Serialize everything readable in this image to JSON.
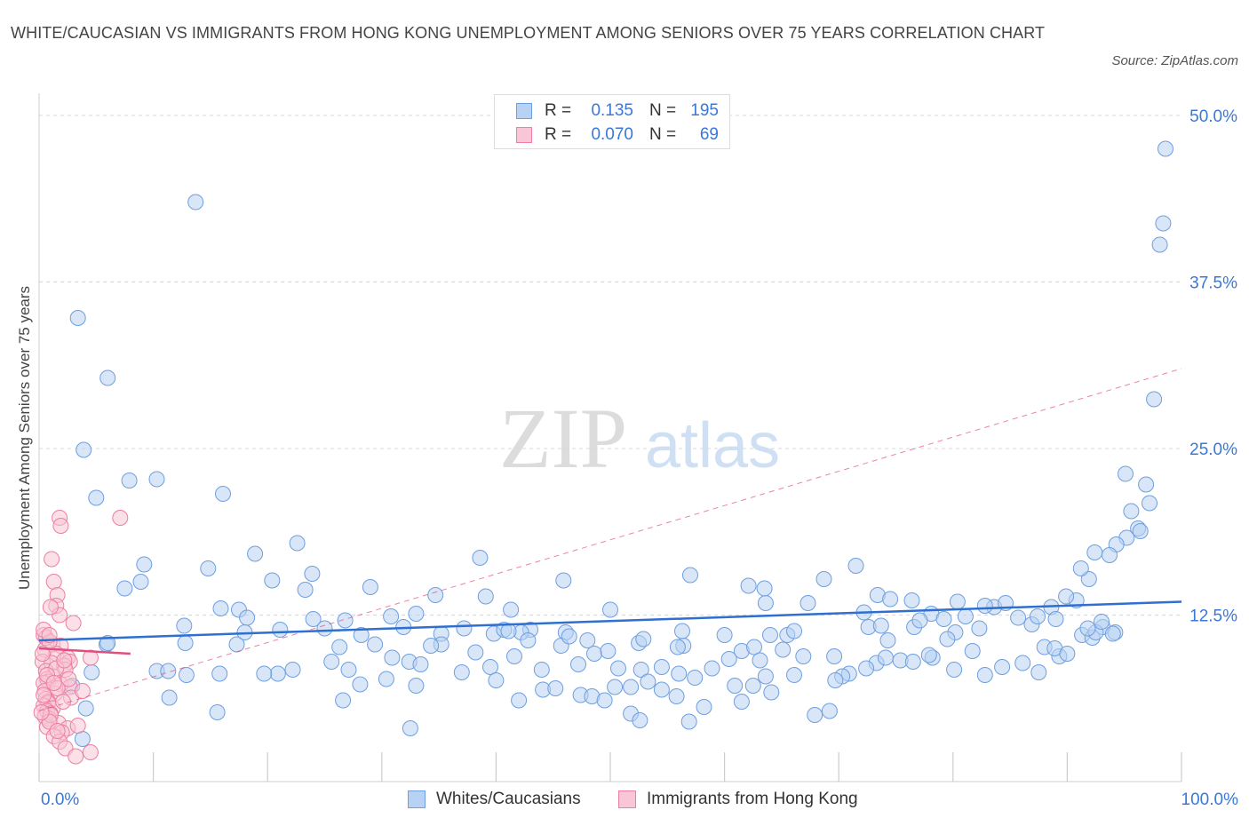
{
  "title": "WHITE/CAUCASIAN VS IMMIGRANTS FROM HONG KONG UNEMPLOYMENT AMONG SENIORS OVER 75 YEARS CORRELATION CHART",
  "source": "Source: ZipAtlas.com",
  "watermark": {
    "zip": "ZIP",
    "atlas": "atlas"
  },
  "legend_top": [
    {
      "r_label": "R =",
      "r_value": "0.135",
      "n_label": "N =",
      "n_value": "195"
    },
    {
      "r_label": "R =",
      "r_value": "0.070",
      "n_label": "N =",
      "n_value": "69"
    }
  ],
  "legend_bottom": [
    "Whites/Caucasians",
    "Immigrants from Hong Kong"
  ],
  "x_tick_labels": {
    "left": "0.0%",
    "right": "100.0%"
  },
  "colors": {
    "blue_fill": "#b8d2f3",
    "blue_stroke": "#6e9fe0",
    "blue_line": "#2e6fcf",
    "pink_fill": "#f8c6d6",
    "pink_stroke": "#ec7fa2",
    "pink_line": "#e24f7f",
    "axis_text": "#3a78d8",
    "grid": "#d8d8d8"
  },
  "chart_data": {
    "type": "scatter",
    "title": "WHITE/CAUCASIAN VS IMMIGRANTS FROM HONG KONG UNEMPLOYMENT AMONG SENIORS OVER 75 YEARS CORRELATION CHART",
    "xlabel": "",
    "ylabel": "Unemployment Among Seniors over 75 years",
    "xlim": [
      0,
      100
    ],
    "ylim": [
      0,
      50
    ],
    "y_ticks": [
      {
        "value": 12.5,
        "label": "12.5%"
      },
      {
        "value": 25.0,
        "label": "25.0%"
      },
      {
        "value": 37.5,
        "label": "37.5%"
      },
      {
        "value": 50.0,
        "label": "50.0%"
      }
    ],
    "x_ticks": [
      0,
      10,
      20,
      30,
      40,
      50,
      60,
      70,
      80,
      90,
      100
    ],
    "series": [
      {
        "name": "Whites/Caucasians",
        "color": "blue",
        "r": 0.135,
        "n": 195,
        "trend": {
          "x": [
            0,
            100
          ],
          "y": [
            10.6,
            13.5
          ],
          "style": "solid"
        },
        "points": [
          [
            13.7,
            43.5
          ],
          [
            3.4,
            34.8
          ],
          [
            6.0,
            30.3
          ],
          [
            3.9,
            24.9
          ],
          [
            5.0,
            21.3
          ],
          [
            7.9,
            22.6
          ],
          [
            10.3,
            22.7
          ],
          [
            16.1,
            21.6
          ],
          [
            9.2,
            16.3
          ],
          [
            8.9,
            15.0
          ],
          [
            7.5,
            14.5
          ],
          [
            14.8,
            16.0
          ],
          [
            18.9,
            17.1
          ],
          [
            20.4,
            15.1
          ],
          [
            22.6,
            17.9
          ],
          [
            23.3,
            14.4
          ],
          [
            23.9,
            15.6
          ],
          [
            17.5,
            12.9
          ],
          [
            24.0,
            12.2
          ],
          [
            18.2,
            12.3
          ],
          [
            26.8,
            12.1
          ],
          [
            29.0,
            14.6
          ],
          [
            30.8,
            12.4
          ],
          [
            33.0,
            12.6
          ],
          [
            34.7,
            14.0
          ],
          [
            35.2,
            11.1
          ],
          [
            38.6,
            16.8
          ],
          [
            39.1,
            13.9
          ],
          [
            41.3,
            12.9
          ],
          [
            39.8,
            11.1
          ],
          [
            43.0,
            11.4
          ],
          [
            42.2,
            11.2
          ],
          [
            35.2,
            10.3
          ],
          [
            37.2,
            11.5
          ],
          [
            45.9,
            15.1
          ],
          [
            46.1,
            11.2
          ],
          [
            50.0,
            12.9
          ],
          [
            52.5,
            10.4
          ],
          [
            56.4,
            10.2
          ],
          [
            60.0,
            11.0
          ],
          [
            62.1,
            14.7
          ],
          [
            63.6,
            13.4
          ],
          [
            65.5,
            11.0
          ],
          [
            68.7,
            15.2
          ],
          [
            57.0,
            15.5
          ],
          [
            55.9,
            10.1
          ],
          [
            56.3,
            11.3
          ],
          [
            61.5,
            9.8
          ],
          [
            66.9,
            9.4
          ],
          [
            73.3,
            8.9
          ],
          [
            76.6,
            11.6
          ],
          [
            78.1,
            12.6
          ],
          [
            79.2,
            12.2
          ],
          [
            80.2,
            11.2
          ],
          [
            72.2,
            12.7
          ],
          [
            63.5,
            14.5
          ],
          [
            73.4,
            14.0
          ],
          [
            69.6,
            9.4
          ],
          [
            70.9,
            8.1
          ],
          [
            74.3,
            10.6
          ],
          [
            74.1,
            9.3
          ],
          [
            79.5,
            10.7
          ],
          [
            81.1,
            12.4
          ],
          [
            85.7,
            12.3
          ],
          [
            83.6,
            13.1
          ],
          [
            86.9,
            11.8
          ],
          [
            88.0,
            10.1
          ],
          [
            89.3,
            9.4
          ],
          [
            91.3,
            11.0
          ],
          [
            92.2,
            10.8
          ],
          [
            93.1,
            11.6
          ],
          [
            94.2,
            11.2
          ],
          [
            97.6,
            28.7
          ],
          [
            98.6,
            47.5
          ],
          [
            98.1,
            40.3
          ],
          [
            98.4,
            41.9
          ],
          [
            95.1,
            23.1
          ],
          [
            95.6,
            20.3
          ],
          [
            96.2,
            19.0
          ],
          [
            96.9,
            22.3
          ],
          [
            97.2,
            20.9
          ],
          [
            96.4,
            18.8
          ],
          [
            95.2,
            18.3
          ],
          [
            94.3,
            17.8
          ],
          [
            93.7,
            17.0
          ],
          [
            92.4,
            17.2
          ],
          [
            91.9,
            15.2
          ],
          [
            91.2,
            16.0
          ],
          [
            90.8,
            13.6
          ],
          [
            89.9,
            13.9
          ],
          [
            88.6,
            13.1
          ],
          [
            89.0,
            12.2
          ],
          [
            87.4,
            12.4
          ],
          [
            84.6,
            13.4
          ],
          [
            82.8,
            13.2
          ],
          [
            80.4,
            13.5
          ],
          [
            77.1,
            12.1
          ],
          [
            76.4,
            13.6
          ],
          [
            71.5,
            16.2
          ],
          [
            74.5,
            13.7
          ],
          [
            67.3,
            13.4
          ],
          [
            66.1,
            11.3
          ],
          [
            64.0,
            11.0
          ],
          [
            62.6,
            10.1
          ],
          [
            5.9,
            10.3
          ],
          [
            4.6,
            8.2
          ],
          [
            2.9,
            7.2
          ],
          [
            4.1,
            5.5
          ],
          [
            3.8,
            3.2
          ],
          [
            6.0,
            10.4
          ],
          [
            12.7,
            11.7
          ],
          [
            15.9,
            13.0
          ],
          [
            12.8,
            10.4
          ],
          [
            10.3,
            8.3
          ],
          [
            11.3,
            8.3
          ],
          [
            12.9,
            8.0
          ],
          [
            11.4,
            6.3
          ],
          [
            15.6,
            5.2
          ],
          [
            15.8,
            8.1
          ],
          [
            17.3,
            10.3
          ],
          [
            18.0,
            11.2
          ],
          [
            20.9,
            8.1
          ],
          [
            19.7,
            8.1
          ],
          [
            21.1,
            11.4
          ],
          [
            22.2,
            8.4
          ],
          [
            25.0,
            11.5
          ],
          [
            25.6,
            9.0
          ],
          [
            26.6,
            6.1
          ],
          [
            27.1,
            8.4
          ],
          [
            26.3,
            10.1
          ],
          [
            28.1,
            7.3
          ],
          [
            28.2,
            11.0
          ],
          [
            29.4,
            10.3
          ],
          [
            30.4,
            7.7
          ],
          [
            30.9,
            9.3
          ],
          [
            31.9,
            11.6
          ],
          [
            32.4,
            9.0
          ],
          [
            33.4,
            8.8
          ],
          [
            34.3,
            10.2
          ],
          [
            32.5,
            4.0
          ],
          [
            33.0,
            7.2
          ],
          [
            37.0,
            8.2
          ],
          [
            38.2,
            9.7
          ],
          [
            39.5,
            8.6
          ],
          [
            40.7,
            11.4
          ],
          [
            41.1,
            11.3
          ],
          [
            41.6,
            9.4
          ],
          [
            42.8,
            10.6
          ],
          [
            40.0,
            7.6
          ],
          [
            42.0,
            6.1
          ],
          [
            44.1,
            6.9
          ],
          [
            45.2,
            7.0
          ],
          [
            44.0,
            8.4
          ],
          [
            45.7,
            10.2
          ],
          [
            47.2,
            8.8
          ],
          [
            47.4,
            6.5
          ],
          [
            48.4,
            6.4
          ],
          [
            50.4,
            7.1
          ],
          [
            48.6,
            9.6
          ],
          [
            49.8,
            9.8
          ],
          [
            50.7,
            8.5
          ],
          [
            52.7,
            8.4
          ],
          [
            51.8,
            7.1
          ],
          [
            49.5,
            6.1
          ],
          [
            51.8,
            5.1
          ],
          [
            52.6,
            4.6
          ],
          [
            53.3,
            7.5
          ],
          [
            54.5,
            8.6
          ],
          [
            55.8,
            6.4
          ],
          [
            56.9,
            4.5
          ],
          [
            57.4,
            7.8
          ],
          [
            58.2,
            5.6
          ],
          [
            58.9,
            8.5
          ],
          [
            60.4,
            9.2
          ],
          [
            60.9,
            7.2
          ],
          [
            61.5,
            6.0
          ],
          [
            62.5,
            7.2
          ],
          [
            64.1,
            6.7
          ],
          [
            63.6,
            7.9
          ],
          [
            63.1,
            9.1
          ],
          [
            65.1,
            9.9
          ],
          [
            66.1,
            8.0
          ],
          [
            67.9,
            5.0
          ],
          [
            70.3,
            7.9
          ],
          [
            69.2,
            5.3
          ],
          [
            69.7,
            7.6
          ],
          [
            72.4,
            8.5
          ],
          [
            72.6,
            11.6
          ],
          [
            73.7,
            11.7
          ],
          [
            75.4,
            9.1
          ],
          [
            76.5,
            9.0
          ],
          [
            78.2,
            9.3
          ],
          [
            77.9,
            9.5
          ],
          [
            80.1,
            8.4
          ],
          [
            82.3,
            11.5
          ],
          [
            81.7,
            9.8
          ],
          [
            82.8,
            8.0
          ],
          [
            84.3,
            8.6
          ],
          [
            86.1,
            8.9
          ],
          [
            87.5,
            8.2
          ],
          [
            88.9,
            10.0
          ],
          [
            90.0,
            9.6
          ],
          [
            92.5,
            11.2
          ],
          [
            91.8,
            11.5
          ],
          [
            93.0,
            12.0
          ],
          [
            94.0,
            11.1
          ],
          [
            54.5,
            6.9
          ],
          [
            56.0,
            8.1
          ],
          [
            52.9,
            10.7
          ],
          [
            48.0,
            10.6
          ],
          [
            46.4,
            10.9
          ]
        ]
      },
      {
        "name": "Immigrants from Hong Kong",
        "color": "pink",
        "r": 0.07,
        "n": 69,
        "trend": {
          "x": [
            0,
            8
          ],
          "y": [
            10.0,
            9.6
          ],
          "style": "solid"
        },
        "trend_extended": {
          "x": [
            0,
            100
          ],
          "y": [
            5.3,
            31.0
          ],
          "style": "dashed"
        },
        "points": [
          [
            1.8,
            19.8
          ],
          [
            1.9,
            19.2
          ],
          [
            7.1,
            19.8
          ],
          [
            1.1,
            16.7
          ],
          [
            1.3,
            15.0
          ],
          [
            1.6,
            14.0
          ],
          [
            1.5,
            13.2
          ],
          [
            1.8,
            12.5
          ],
          [
            3.0,
            11.9
          ],
          [
            1.0,
            13.1
          ],
          [
            0.4,
            11.0
          ],
          [
            1.2,
            10.3
          ],
          [
            1.9,
            10.2
          ],
          [
            0.5,
            9.9
          ],
          [
            1.5,
            9.6
          ],
          [
            2.5,
            9.3
          ],
          [
            2.7,
            9.0
          ],
          [
            0.3,
            9.0
          ],
          [
            1.1,
            8.9
          ],
          [
            2.2,
            8.7
          ],
          [
            2.3,
            8.4
          ],
          [
            0.6,
            8.3
          ],
          [
            1.2,
            7.9
          ],
          [
            0.7,
            7.7
          ],
          [
            0.8,
            7.5
          ],
          [
            0.4,
            7.4
          ],
          [
            1.9,
            7.3
          ],
          [
            2.7,
            7.1
          ],
          [
            0.5,
            6.8
          ],
          [
            1.4,
            6.6
          ],
          [
            0.6,
            6.2
          ],
          [
            0.8,
            6.0
          ],
          [
            2.8,
            6.3
          ],
          [
            3.8,
            6.8
          ],
          [
            0.8,
            5.9
          ],
          [
            0.4,
            5.7
          ],
          [
            1.2,
            5.5
          ],
          [
            0.7,
            5.3
          ],
          [
            1.0,
            5.1
          ],
          [
            0.5,
            4.9
          ],
          [
            0.9,
            4.7
          ],
          [
            1.7,
            4.4
          ],
          [
            2.5,
            4.0
          ],
          [
            3.4,
            4.2
          ],
          [
            0.7,
            4.1
          ],
          [
            2.0,
            3.7
          ],
          [
            1.3,
            3.4
          ],
          [
            1.8,
            3.0
          ],
          [
            2.3,
            2.5
          ],
          [
            3.2,
            1.9
          ],
          [
            4.5,
            2.2
          ],
          [
            4.5,
            9.3
          ],
          [
            0.6,
            10.8
          ],
          [
            0.9,
            10.5
          ],
          [
            0.3,
            9.6
          ],
          [
            1.5,
            8.5
          ],
          [
            0.7,
            8.0
          ],
          [
            1.6,
            7.0
          ],
          [
            0.4,
            6.5
          ],
          [
            2.1,
            6.0
          ],
          [
            1.0,
            5.0
          ],
          [
            0.9,
            4.5
          ],
          [
            1.6,
            3.8
          ],
          [
            0.4,
            11.4
          ],
          [
            0.9,
            11.0
          ],
          [
            2.6,
            7.7
          ],
          [
            2.2,
            9.1
          ],
          [
            1.3,
            7.4
          ],
          [
            0.2,
            5.2
          ]
        ]
      }
    ]
  }
}
